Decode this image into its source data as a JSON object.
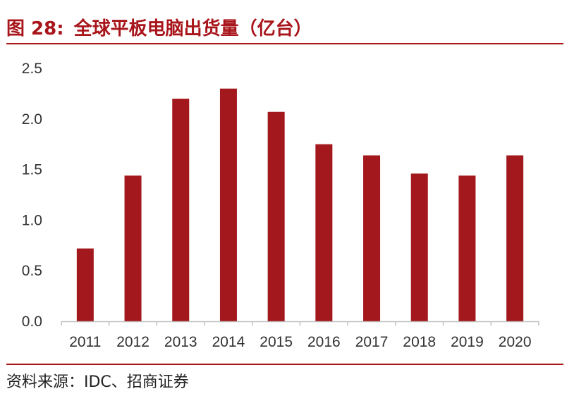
{
  "figure": {
    "number": "图 28:",
    "title": "全球平板电脑出货量（亿台）"
  },
  "source": "资料来源：IDC、招商证券",
  "colors": {
    "accent": "#a8151b",
    "bar": "#a3181c",
    "axis": "#bfbfbf"
  },
  "chart_data": {
    "type": "bar",
    "title": "全球平板电脑出货量（亿台）",
    "categories": [
      "2011",
      "2012",
      "2013",
      "2014",
      "2015",
      "2016",
      "2017",
      "2018",
      "2019",
      "2020"
    ],
    "values": [
      0.72,
      1.44,
      2.2,
      2.3,
      2.07,
      1.75,
      1.64,
      1.46,
      1.44,
      1.64
    ],
    "yticks": [
      "0.0",
      "0.5",
      "1.0",
      "1.5",
      "2.0",
      "2.5"
    ],
    "ylim": [
      0,
      2.5
    ],
    "xlabel": "",
    "ylabel": "",
    "grid": false,
    "legend": "none"
  }
}
